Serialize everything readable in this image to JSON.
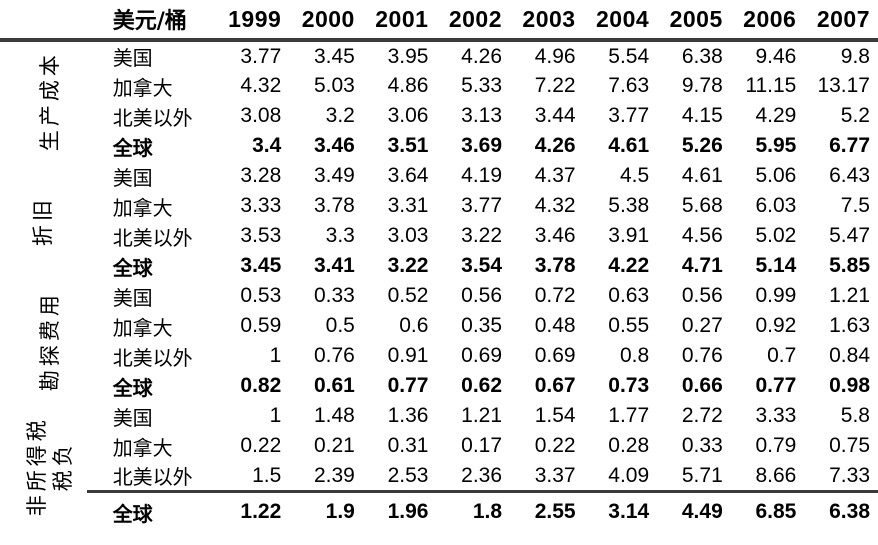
{
  "chart_data": {
    "type": "table",
    "title": "",
    "unit_header": "美元/桶",
    "years": [
      "1999",
      "2000",
      "2001",
      "2002",
      "2003",
      "2004",
      "2005",
      "2006",
      "2007"
    ],
    "groups": [
      {
        "label": "生产成本",
        "rows": [
          {
            "label": "美国",
            "bold": false,
            "values": [
              "3.77",
              "3.45",
              "3.95",
              "4.26",
              "4.96",
              "5.54",
              "6.38",
              "9.46",
              "9.8"
            ]
          },
          {
            "label": "加拿大",
            "bold": false,
            "values": [
              "4.32",
              "5.03",
              "4.86",
              "5.33",
              "7.22",
              "7.63",
              "9.78",
              "11.15",
              "13.17"
            ]
          },
          {
            "label": "北美以外",
            "bold": false,
            "values": [
              "3.08",
              "3.2",
              "3.06",
              "3.13",
              "3.44",
              "3.77",
              "4.15",
              "4.29",
              "5.2"
            ]
          },
          {
            "label": "全球",
            "bold": true,
            "values": [
              "3.4",
              "3.46",
              "3.51",
              "3.69",
              "4.26",
              "4.61",
              "5.26",
              "5.95",
              "6.77"
            ]
          }
        ]
      },
      {
        "label": "折旧",
        "rows": [
          {
            "label": "美国",
            "bold": false,
            "values": [
              "3.28",
              "3.49",
              "3.64",
              "4.19",
              "4.37",
              "4.5",
              "4.61",
              "5.06",
              "6.43"
            ]
          },
          {
            "label": "加拿大",
            "bold": false,
            "values": [
              "3.33",
              "3.78",
              "3.31",
              "3.77",
              "4.32",
              "5.38",
              "5.68",
              "6.03",
              "7.5"
            ]
          },
          {
            "label": "北美以外",
            "bold": false,
            "values": [
              "3.53",
              "3.3",
              "3.03",
              "3.22",
              "3.46",
              "3.91",
              "4.56",
              "5.02",
              "5.47"
            ]
          },
          {
            "label": "全球",
            "bold": true,
            "values": [
              "3.45",
              "3.41",
              "3.22",
              "3.54",
              "3.78",
              "4.22",
              "4.71",
              "5.14",
              "5.85"
            ]
          }
        ]
      },
      {
        "label": "勘探费用",
        "rows": [
          {
            "label": "美国",
            "bold": false,
            "values": [
              "0.53",
              "0.33",
              "0.52",
              "0.56",
              "0.72",
              "0.63",
              "0.56",
              "0.99",
              "1.21"
            ]
          },
          {
            "label": "加拿大",
            "bold": false,
            "values": [
              "0.59",
              "0.5",
              "0.6",
              "0.35",
              "0.48",
              "0.55",
              "0.27",
              "0.92",
              "1.63"
            ]
          },
          {
            "label": "北美以外",
            "bold": false,
            "values": [
              "1",
              "0.76",
              "0.91",
              "0.69",
              "0.69",
              "0.8",
              "0.76",
              "0.7",
              "0.84"
            ]
          },
          {
            "label": "全球",
            "bold": true,
            "values": [
              "0.82",
              "0.61",
              "0.77",
              "0.62",
              "0.67",
              "0.73",
              "0.66",
              "0.77",
              "0.98"
            ]
          }
        ]
      },
      {
        "label": "非所得税\n税负",
        "rows": [
          {
            "label": "美国",
            "bold": false,
            "values": [
              "1",
              "1.48",
              "1.36",
              "1.21",
              "1.54",
              "1.77",
              "2.72",
              "3.33",
              "5.8"
            ]
          },
          {
            "label": "加拿大",
            "bold": false,
            "values": [
              "0.22",
              "0.21",
              "0.31",
              "0.17",
              "0.22",
              "0.28",
              "0.33",
              "0.79",
              "0.75"
            ]
          },
          {
            "label": "北美以外",
            "bold": false,
            "values": [
              "1.5",
              "2.39",
              "2.53",
              "2.36",
              "3.37",
              "4.09",
              "5.71",
              "8.66",
              "7.33"
            ]
          },
          {
            "label": "全球",
            "bold": true,
            "values": [
              "1.22",
              "1.9",
              "1.96",
              "1.8",
              "2.55",
              "3.14",
              "4.49",
              "6.85",
              "6.38"
            ]
          }
        ]
      }
    ],
    "layout": {
      "grid": "off",
      "header_rule_color": "#3a3a3a",
      "final_total_rule_color": "#3a3a3a",
      "text_color": "#000000",
      "background": "#ffffff"
    }
  }
}
